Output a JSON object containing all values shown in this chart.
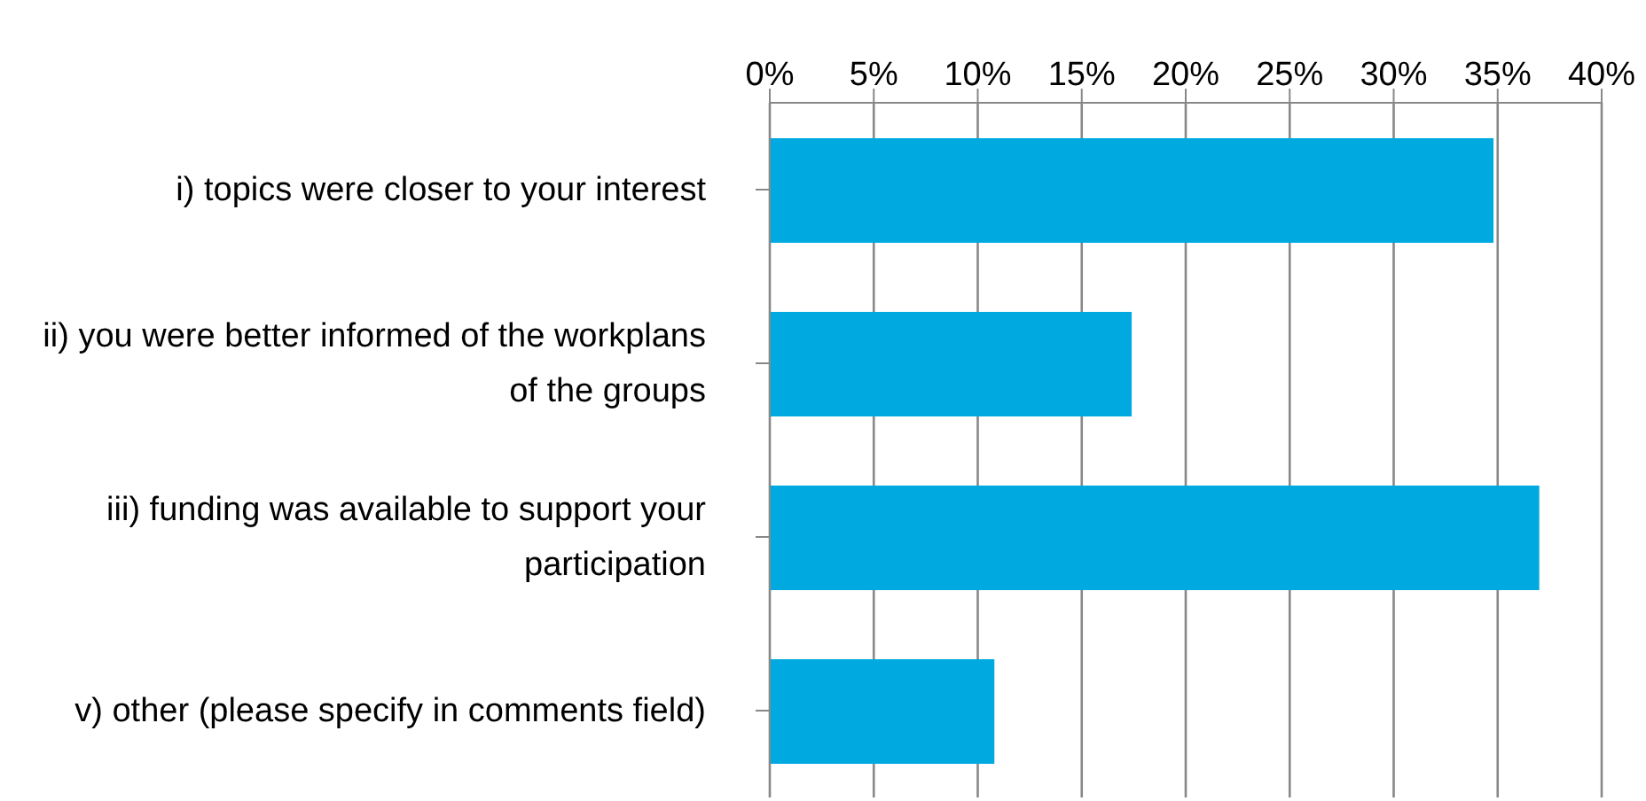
{
  "chart_data": {
    "type": "bar",
    "orientation": "horizontal",
    "categories": [
      "i) topics were closer to your interest",
      "ii) you were better informed of the workplans of the groups",
      "iii) funding was available to support your participation",
      "v) other (please specify in comments field)"
    ],
    "values": [
      34.8,
      17.4,
      37.0,
      10.8
    ],
    "color": "#00a9e0",
    "xlim": [
      0,
      40
    ],
    "xticks": [
      {
        "value": 0,
        "label": "0%"
      },
      {
        "value": 5,
        "label": "5%"
      },
      {
        "value": 10,
        "label": "10%"
      },
      {
        "value": 15,
        "label": "15%"
      },
      {
        "value": 20,
        "label": "20%"
      },
      {
        "value": 25,
        "label": "25%"
      },
      {
        "value": 30,
        "label": "30%"
      },
      {
        "value": 35,
        "label": "35%"
      },
      {
        "value": 40,
        "label": "40%"
      }
    ],
    "grid": "x",
    "legend": false
  }
}
